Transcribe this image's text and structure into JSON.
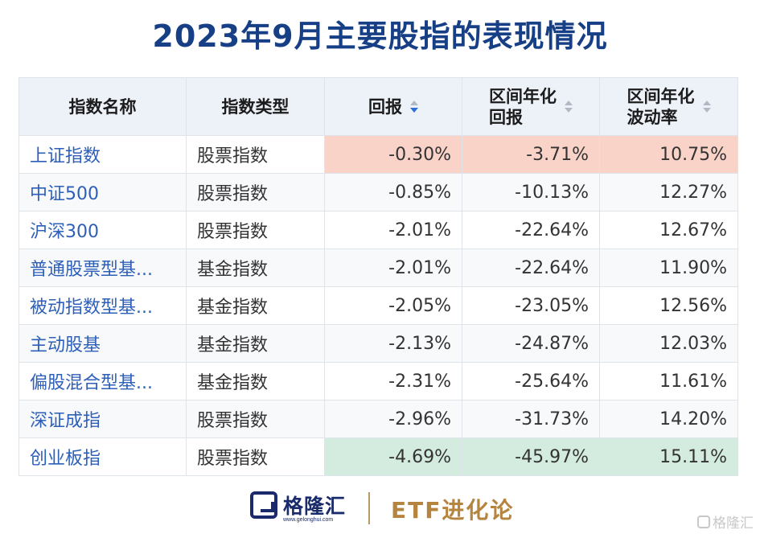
{
  "title": "2023年9月主要股指的表现情况",
  "table": {
    "headers": {
      "name": "指数名称",
      "type": "指数类型",
      "return": "回报",
      "annual_return_1": "区间年化",
      "annual_return_2": "回报",
      "volatility_1": "区间年化",
      "volatility_2": "波动率"
    },
    "rows": [
      {
        "name": "上证指数",
        "type": "股票指数",
        "ret": "-0.30%",
        "ann": "-3.71%",
        "vol": "10.75%"
      },
      {
        "name": "中证500",
        "type": "股票指数",
        "ret": "-0.85%",
        "ann": "-10.13%",
        "vol": "12.27%"
      },
      {
        "name": "沪深300",
        "type": "股票指数",
        "ret": "-2.01%",
        "ann": "-22.64%",
        "vol": "12.67%"
      },
      {
        "name": "普通股票型基...",
        "type": "基金指数",
        "ret": "-2.01%",
        "ann": "-22.64%",
        "vol": "11.90%"
      },
      {
        "name": "被动指数型基...",
        "type": "基金指数",
        "ret": "-2.05%",
        "ann": "-23.05%",
        "vol": "12.56%"
      },
      {
        "name": "主动股基",
        "type": "基金指数",
        "ret": "-2.13%",
        "ann": "-24.87%",
        "vol": "12.03%"
      },
      {
        "name": "偏股混合型基...",
        "type": "基金指数",
        "ret": "-2.31%",
        "ann": "-25.64%",
        "vol": "11.61%"
      },
      {
        "name": "深证成指",
        "type": "股票指数",
        "ret": "-2.96%",
        "ann": "-31.73%",
        "vol": "14.20%"
      },
      {
        "name": "创业板指",
        "type": "股票指数",
        "ret": "-4.69%",
        "ann": "-45.97%",
        "vol": "15.11%"
      }
    ]
  },
  "footer": {
    "logo_name": "格隆汇",
    "logo_url": "www.gelonghui.com",
    "brand": "ETF进化论",
    "watermark": "格隆汇"
  },
  "colors": {
    "title": "#163f86",
    "highlight_top": "#f9d2c8",
    "highlight_bottom": "#d4ebdf",
    "name_link": "#2d5fb9"
  }
}
